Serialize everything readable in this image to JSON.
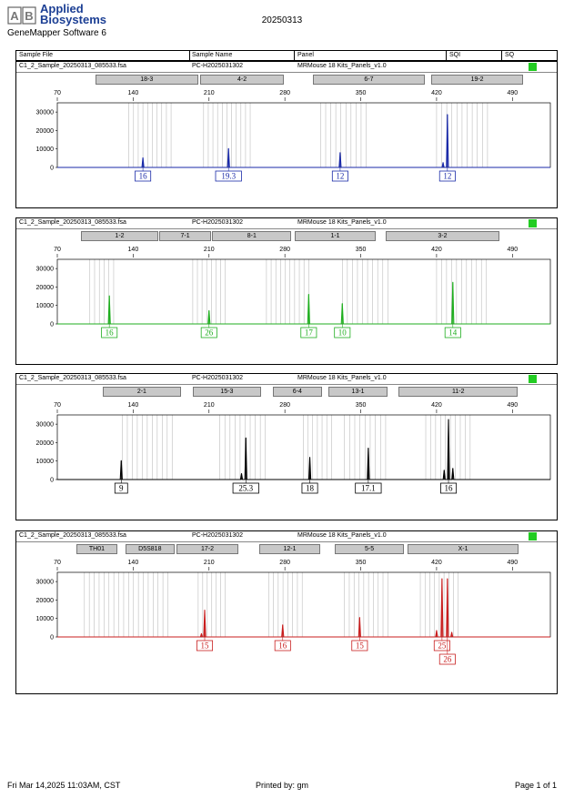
{
  "header": {
    "brand_line1": "Applied",
    "brand_line2": "Biosystems",
    "software": "GeneMapper Software 6",
    "date": "20250313"
  },
  "columns": {
    "sample_file": "Sample File",
    "sample_name": "Sample Name",
    "panel": "Panel",
    "sqi": "SQI",
    "sq": "SQ"
  },
  "footer": {
    "left": "Fri Mar 14,2025 11:03AM, CST",
    "center": "Printed by: gm",
    "right": "Page 1 of 1"
  },
  "colors": {
    "blue": "#1a2aa8",
    "green": "#1fae1f",
    "black": "#000000",
    "red": "#c81e1e",
    "quality": "#22cc22"
  },
  "chart_data": [
    {
      "type": "line",
      "dye": "blue",
      "color": "#1a2aa8",
      "sample_file": "C1_2_Sample_20250313_085533.fsa",
      "sample_name": "PC-H2025031302",
      "panel": "MRMouse 18 Kits_Panels_v1.0",
      "xlim": [
        70,
        525
      ],
      "xticks": [
        70,
        140,
        210,
        280,
        350,
        420,
        490
      ],
      "ylim": [
        0,
        35000
      ],
      "yticks": [
        0,
        10000,
        20000,
        30000
      ],
      "bins": [
        {
          "label": "18-3",
          "x0": 105,
          "x1": 200
        },
        {
          "label": "4-2",
          "x0": 202,
          "x1": 279
        },
        {
          "label": "6-7",
          "x0": 306,
          "x1": 409
        },
        {
          "label": "19-2",
          "x0": 415,
          "x1": 500
        }
      ],
      "binlines": [
        [
          136,
          175
        ],
        [
          205,
          248
        ],
        [
          313,
          355
        ],
        [
          420,
          467
        ]
      ],
      "peaks": [
        {
          "x": 149,
          "y": 5200,
          "label": "16"
        },
        {
          "x": 228,
          "y": 10200,
          "label": "19.3"
        },
        {
          "x": 331,
          "y": 8000,
          "label": "12"
        },
        {
          "x": 426,
          "y": 2600
        },
        {
          "x": 430,
          "y": 28600,
          "label": "12"
        }
      ]
    },
    {
      "type": "line",
      "dye": "green",
      "color": "#1fae1f",
      "sample_file": "C1_2_Sample_20250313_085533.fsa",
      "sample_name": "PC-H2025031302",
      "panel": "MRMouse 18 Kits_Panels_v1.0",
      "xlim": [
        70,
        525
      ],
      "xticks": [
        70,
        140,
        210,
        280,
        350,
        420,
        490
      ],
      "ylim": [
        0,
        35000
      ],
      "yticks": [
        0,
        10000,
        20000,
        30000
      ],
      "bins": [
        {
          "label": "1-2",
          "x0": 92,
          "x1": 163
        },
        {
          "label": "7-1",
          "x0": 164,
          "x1": 212
        },
        {
          "label": "8-1",
          "x0": 213,
          "x1": 286
        },
        {
          "label": "1-1",
          "x0": 289,
          "x1": 364
        },
        {
          "label": "3-2",
          "x0": 373,
          "x1": 478
        }
      ],
      "binlines": [
        [
          100,
          122
        ],
        [
          195,
          225
        ],
        [
          263,
          302
        ],
        [
          333,
          375
        ],
        [
          420,
          466
        ]
      ],
      "peaks": [
        {
          "x": 118,
          "y": 15200,
          "label": "16"
        },
        {
          "x": 210,
          "y": 7200,
          "label": "26"
        },
        {
          "x": 302,
          "y": 16000,
          "label": "17"
        },
        {
          "x": 333,
          "y": 11000,
          "label": "10"
        },
        {
          "x": 435,
          "y": 22500,
          "label": "14"
        }
      ]
    },
    {
      "type": "line",
      "dye": "black",
      "color": "#000000",
      "sample_file": "C1_2_Sample_20250313_085533.fsa",
      "sample_name": "PC-H2025031302",
      "panel": "MRMouse 18 Kits_Panels_v1.0",
      "xlim": [
        70,
        525
      ],
      "xticks": [
        70,
        140,
        210,
        280,
        350,
        420,
        490
      ],
      "ylim": [
        0,
        35000
      ],
      "yticks": [
        0,
        10000,
        20000,
        30000
      ],
      "bins": [
        {
          "label": "2-1",
          "x0": 112,
          "x1": 184
        },
        {
          "label": "15-3",
          "x0": 195,
          "x1": 258
        },
        {
          "label": "6-4",
          "x0": 269,
          "x1": 314
        },
        {
          "label": "13-1",
          "x0": 320,
          "x1": 375
        },
        {
          "label": "11-2",
          "x0": 385,
          "x1": 495
        }
      ],
      "binlines": [
        [
          130,
          176
        ],
        [
          220,
          262
        ],
        [
          297,
          323
        ],
        [
          335,
          373
        ],
        [
          410,
          451
        ]
      ],
      "peaks": [
        {
          "x": 129,
          "y": 10200,
          "label": "9"
        },
        {
          "x": 244,
          "y": 22500,
          "label": "25.3"
        },
        {
          "x": 240,
          "y": 3200
        },
        {
          "x": 303,
          "y": 12000,
          "label": "18"
        },
        {
          "x": 357,
          "y": 17000,
          "label": "17.1"
        },
        {
          "x": 427,
          "y": 5000
        },
        {
          "x": 431,
          "y": 32500,
          "label": "16"
        },
        {
          "x": 435,
          "y": 6000
        }
      ]
    },
    {
      "type": "line",
      "dye": "red",
      "color": "#c81e1e",
      "sample_file": "C1_2_Sample_20250313_085533.fsa",
      "sample_name": "PC-H2025031302",
      "panel": "MRMouse 18 Kits_Panels_v1.0",
      "xlim": [
        70,
        525
      ],
      "xticks": [
        70,
        140,
        210,
        280,
        350,
        420,
        490
      ],
      "ylim": [
        0,
        35000
      ],
      "yticks": [
        0,
        10000,
        20000,
        30000
      ],
      "bins": [
        {
          "label": "TH01",
          "x0": 88,
          "x1": 125
        },
        {
          "label": "D5S818",
          "x0": 133,
          "x1": 178
        },
        {
          "label": "17-2",
          "x0": 180,
          "x1": 237
        },
        {
          "label": "12-1",
          "x0": 256,
          "x1": 313
        },
        {
          "label": "5-5",
          "x0": 326,
          "x1": 390
        },
        {
          "label": "X-1",
          "x0": 393,
          "x1": 496
        }
      ],
      "binlines": [
        [
          95,
          172
        ],
        [
          200,
          225
        ],
        [
          265,
          296
        ],
        [
          335,
          375
        ],
        [
          405,
          440
        ]
      ],
      "peaks": [
        {
          "x": 206,
          "y": 14500,
          "label": "15"
        },
        {
          "x": 203,
          "y": 1800
        },
        {
          "x": 278,
          "y": 6500,
          "label": "16"
        },
        {
          "x": 349,
          "y": 10500,
          "label": "15"
        },
        {
          "x": 420,
          "y": 3500
        },
        {
          "x": 425,
          "y": 31500,
          "label": "25"
        },
        {
          "x": 430,
          "y": 31500,
          "label": "26"
        },
        {
          "x": 434,
          "y": 2500
        }
      ]
    }
  ]
}
